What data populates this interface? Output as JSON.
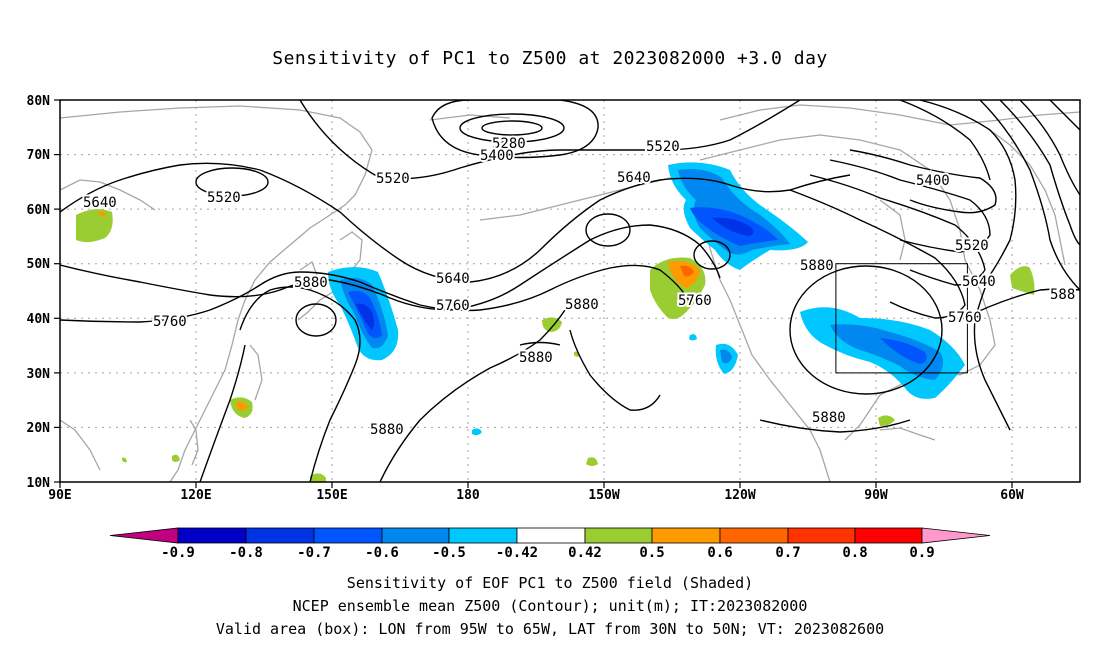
{
  "title": "Sensitivity of PC1 to Z500 at 2023082000 +3.0 day",
  "map": {
    "lon_ticks": [
      "90E",
      "120E",
      "150E",
      "180",
      "150W",
      "120W",
      "90W",
      "60W"
    ],
    "lat_ticks": [
      "80N",
      "70N",
      "60N",
      "50N",
      "40N",
      "30N",
      "20N",
      "10N"
    ],
    "contour_labels": [
      "5280",
      "5400",
      "5520",
      "5520",
      "5520",
      "5640",
      "5640",
      "5640",
      "5400",
      "5520",
      "5640",
      "5760",
      "5760",
      "5760",
      "5880",
      "5880",
      "5880",
      "5880",
      "5880",
      "5760",
      "5880",
      "588"
    ],
    "valid_box": {
      "lon_west": "95W",
      "lon_east": "65W",
      "lat_south": "30N",
      "lat_north": "50N"
    },
    "colors": {
      "coast": "#a6a6a6",
      "contour": "#000000",
      "grid": "#a0a0a0"
    }
  },
  "colorbar": {
    "labels": [
      "-0.9",
      "-0.8",
      "-0.7",
      "-0.6",
      "-0.5",
      "-0.42",
      "0.42",
      "0.5",
      "0.6",
      "0.7",
      "0.8",
      "0.9"
    ],
    "colors": [
      "#c0007f",
      "#0000c8",
      "#0033e6",
      "#0055ff",
      "#0088f0",
      "#00c8ff",
      "#ffffff",
      "#9acd32",
      "#ff9900",
      "#ff6600",
      "#ff3300",
      "#ff0000",
      "#ff99cc"
    ]
  },
  "footer": {
    "line1": "Sensitivity of EOF PC1 to Z500 field (Shaded)",
    "line2": "NCEP ensemble mean Z500 (Contour); unit(m); IT:2023082000",
    "line3": "Valid area (box): LON from 95W to 65W, LAT from 30N to 50N; VT: 2023082600"
  }
}
